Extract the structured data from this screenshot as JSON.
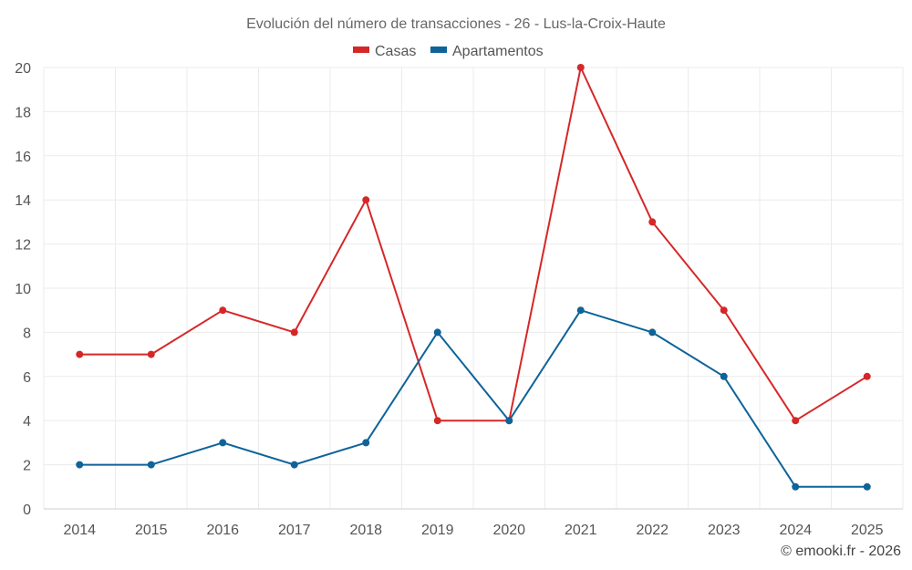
{
  "chart_data": {
    "type": "line",
    "title": "Evolución del número de transacciones - 26 - Lus-la-Croix-Haute",
    "categories": [
      "2014",
      "2015",
      "2016",
      "2017",
      "2018",
      "2019",
      "2020",
      "2021",
      "2022",
      "2023",
      "2024",
      "2025"
    ],
    "series": [
      {
        "name": "Casas",
        "color": "#d62728",
        "values": [
          7,
          7,
          9,
          8,
          14,
          4,
          4,
          20,
          13,
          9,
          4,
          6
        ]
      },
      {
        "name": "Apartamentos",
        "color": "#0f6399",
        "values": [
          2,
          2,
          3,
          2,
          3,
          8,
          4,
          9,
          8,
          6,
          1,
          1
        ]
      }
    ],
    "ylim": [
      0,
      20
    ],
    "yticks": [
      0,
      2,
      4,
      6,
      8,
      10,
      12,
      14,
      16,
      18,
      20
    ],
    "grid": true,
    "legend": "top-center",
    "xlabel": "",
    "ylabel": ""
  },
  "credit": "© emooki.fr - 2026"
}
